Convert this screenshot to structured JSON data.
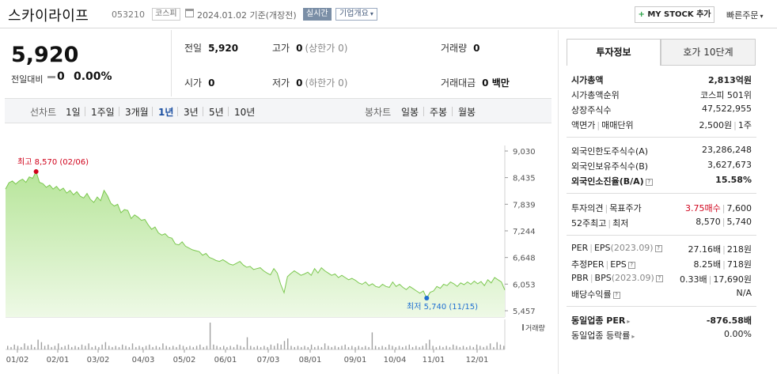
{
  "header": {
    "name": "스카이라이프",
    "code": "053210",
    "market": "코스피",
    "date": "2024.01.02  기준(개장전)",
    "realtime": "실시간",
    "company_info": "기업개요",
    "my_stock": "MY STOCK 추가",
    "quick_order": "빠른주문"
  },
  "price": {
    "current": "5,920",
    "change_label": "전일대비",
    "change": "0",
    "change_pct": "0.00%"
  },
  "stats": {
    "prev_label": "전일",
    "prev": "5,920",
    "high_label": "고가",
    "high": "0",
    "high_sub": "(상한가 0)",
    "volume_label": "거래량",
    "volume": "0",
    "open_label": "시가",
    "open": "0",
    "low_label": "저가",
    "low": "0",
    "low_sub": "(하한가 0)",
    "amount_label": "거래대금",
    "amount": "0 백만"
  },
  "tabs": {
    "line_chart": "선차트",
    "periods": [
      "1일",
      "1주일",
      "3개월",
      "1년",
      "3년",
      "5년",
      "10년"
    ],
    "selected": "1년",
    "candle_chart": "봉차트",
    "candles": [
      "일봉",
      "주봉",
      "월봉"
    ]
  },
  "chart_data": {
    "type": "area",
    "y_ticks": [
      "9,030",
      "8,435",
      "7,839",
      "7,244",
      "6,648",
      "6,053",
      "5,457"
    ],
    "ylim": [
      5457,
      9030
    ],
    "x_ticks": [
      "01/02",
      "02/01",
      "03/02",
      "04/03",
      "05/02",
      "06/01",
      "07/03",
      "08/01",
      "09/01",
      "10/04",
      "11/01",
      "12/01"
    ],
    "high_label": "최고 8,570 (02/06)",
    "low_label": "최저 5,740 (11/15)",
    "high_value": 8570,
    "low_value": 5740,
    "volume_label": "거래량",
    "colors": {
      "area_top": "#b7e59a",
      "area_bottom": "#eef9e6",
      "line": "#7cc850",
      "volume": "#a0a0a0",
      "high": "#d0021b",
      "low": "#1f6fd1"
    },
    "series": [
      {
        "values": [
          8180,
          8320,
          8360,
          8290,
          8360,
          8400,
          8330,
          8450,
          8420,
          8570,
          8330,
          8300,
          8220,
          8270,
          8180,
          8240,
          8150,
          8200,
          8090,
          8150,
          8050,
          8120,
          8020,
          7980,
          8080,
          7950,
          7880,
          8000,
          7920,
          8150,
          8030,
          7860,
          7800,
          7840,
          7650,
          7720,
          7700,
          7520,
          7600,
          7550,
          7480,
          7500,
          7380,
          7280,
          7330,
          7200,
          7150,
          7180,
          7100,
          7080,
          6950,
          6930,
          7000,
          6900,
          6860,
          6820,
          6800,
          6780,
          6700,
          6740,
          6650,
          6620,
          6580,
          6560,
          6600,
          6550,
          6500,
          6480,
          6520,
          6560,
          6480,
          6430,
          6450,
          6380,
          6400,
          6420,
          6350,
          6300,
          6260,
          6400,
          6300,
          6050,
          5860,
          6220,
          6290,
          6350,
          6300,
          6250,
          6280,
          6320,
          6250,
          6400,
          6300,
          6420,
          6350,
          6300,
          6250,
          6280,
          6200,
          6250,
          6200,
          6150,
          6180,
          6140,
          6080,
          6050,
          6100,
          6020,
          6060,
          6000,
          5980,
          6050,
          6000,
          5980,
          6100,
          6000,
          6050,
          5980,
          5930,
          6000,
          5950,
          5900,
          5850,
          5900,
          5740,
          5870,
          5900,
          6000,
          5960,
          6050,
          6020,
          6100,
          6060,
          6000,
          6080,
          6040,
          6100,
          6050,
          6120,
          6060,
          6110,
          6020,
          6150,
          6080,
          6200,
          6150,
          6100,
          5920
        ]
      }
    ],
    "volume": [
      3,
      2,
      4,
      3,
      2,
      5,
      3,
      4,
      2,
      8,
      6,
      3,
      4,
      2,
      3,
      5,
      2,
      3,
      4,
      2,
      3,
      2,
      4,
      3,
      5,
      2,
      3,
      2,
      4,
      6,
      3,
      2,
      3,
      2,
      4,
      3,
      2,
      5,
      2,
      3,
      2,
      3,
      4,
      2,
      3,
      2,
      5,
      3,
      2,
      3,
      2,
      4,
      3,
      2,
      3,
      2,
      3,
      4,
      2,
      3,
      22,
      4,
      3,
      2,
      3,
      2,
      3,
      2,
      4,
      3,
      2,
      10,
      3,
      2,
      3,
      2,
      3,
      2,
      4,
      3,
      5,
      4,
      7,
      9,
      3,
      2,
      3,
      2,
      3,
      2,
      4,
      2,
      3,
      2,
      5,
      3,
      2,
      3,
      2,
      3,
      4,
      2,
      3,
      2,
      3,
      2,
      3,
      2,
      14,
      3,
      2,
      3,
      2,
      4,
      3,
      2,
      3,
      2,
      3,
      4,
      2,
      3,
      2,
      3,
      5,
      8,
      3,
      2,
      3,
      2,
      3,
      2,
      4,
      3,
      2,
      3,
      2,
      3,
      2,
      4,
      3,
      2,
      3,
      5,
      2,
      6,
      4,
      3
    ]
  },
  "panel": {
    "tab_invest": "투자정보",
    "tab_hoga": "호가 10단계",
    "market_cap_label": "시가총액",
    "market_cap": "2,813억원",
    "rank_label": "시가총액순위",
    "rank": "코스피 501위",
    "shares_label": "상장주식수",
    "shares": "47,522,955",
    "par_label": "액면가",
    "par_unit_label": "매매단위",
    "par": "2,500원",
    "unit": "1주",
    "foreign_limit_label": "외국인한도주식수(A)",
    "foreign_limit": "23,286,248",
    "foreign_hold_label": "외국인보유주식수(B)",
    "foreign_hold": "3,627,673",
    "foreign_ratio_label": "외국인소진율(B/A)",
    "foreign_ratio": "15.58%",
    "opinion_label": "투자의견",
    "target_label": "목표주가",
    "opinion": "3.75매수",
    "target": "7,600",
    "w52_label": "52주최고",
    "w52_low_label": "최저",
    "w52_high": "8,570",
    "w52_low": "5,740",
    "per_label": "PER",
    "eps_label": "EPS",
    "eps_period": "(2023.09)",
    "per": "27.16배",
    "eps": "218원",
    "eper_label": "추정PER",
    "eeps_label": "EPS",
    "eper": "8.25배",
    "eeps": "718원",
    "pbr_label": "PBR",
    "bps_label": "BPS",
    "bps_period": "(2023.09)",
    "pbr": "0.33배",
    "bps": "17,690원",
    "div_label": "배당수익률",
    "div": "N/A",
    "ind_per_label": "동일업종 PER",
    "ind_per": "-876.58배",
    "ind_rate_label": "동일업종 등락률",
    "ind_rate": "0.00%"
  }
}
